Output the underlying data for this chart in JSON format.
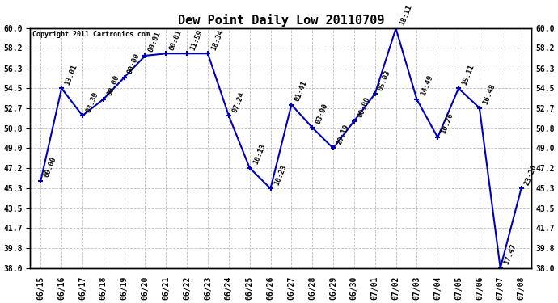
{
  "title": "Dew Point Daily Low 20110709",
  "copyright": "Copyright 2011 Cartronics.com",
  "x_labels": [
    "06/15",
    "06/16",
    "06/17",
    "06/18",
    "06/19",
    "06/20",
    "06/21",
    "06/22",
    "06/23",
    "06/24",
    "06/25",
    "06/26",
    "06/27",
    "06/28",
    "06/29",
    "06/30",
    "07/01",
    "07/02",
    "07/03",
    "07/04",
    "07/05",
    "07/06",
    "07/07",
    "07/08"
  ],
  "y_values": [
    46.0,
    54.5,
    52.0,
    53.5,
    55.5,
    57.5,
    57.7,
    57.7,
    57.7,
    52.0,
    47.2,
    45.3,
    53.0,
    50.9,
    49.0,
    51.5,
    54.0,
    60.0,
    53.5,
    50.0,
    54.5,
    52.7,
    38.0,
    45.3
  ],
  "point_labels": [
    "00:00",
    "13:01",
    "03:39",
    "00:00",
    "00:00",
    "00:01",
    "00:01",
    "11:59",
    "18:34",
    "07:24",
    "10:13",
    "10:23",
    "01:41",
    "03:00",
    "20:19",
    "00:00",
    "05:03",
    "18:11",
    "14:49",
    "10:26",
    "15:11",
    "16:48",
    "17:47",
    "23:26"
  ],
  "line_color": "#0000bb",
  "marker_color": "#0000bb",
  "bg_color": "#ffffff",
  "grid_color": "#bbbbbb",
  "ylim_min": 38.0,
  "ylim_max": 60.0,
  "yticks": [
    38.0,
    39.8,
    41.7,
    43.5,
    45.3,
    47.2,
    49.0,
    50.8,
    52.7,
    54.5,
    56.3,
    58.2,
    60.0
  ],
  "label_fontsize": 6.5,
  "title_fontsize": 11,
  "tick_fontsize": 7.0
}
